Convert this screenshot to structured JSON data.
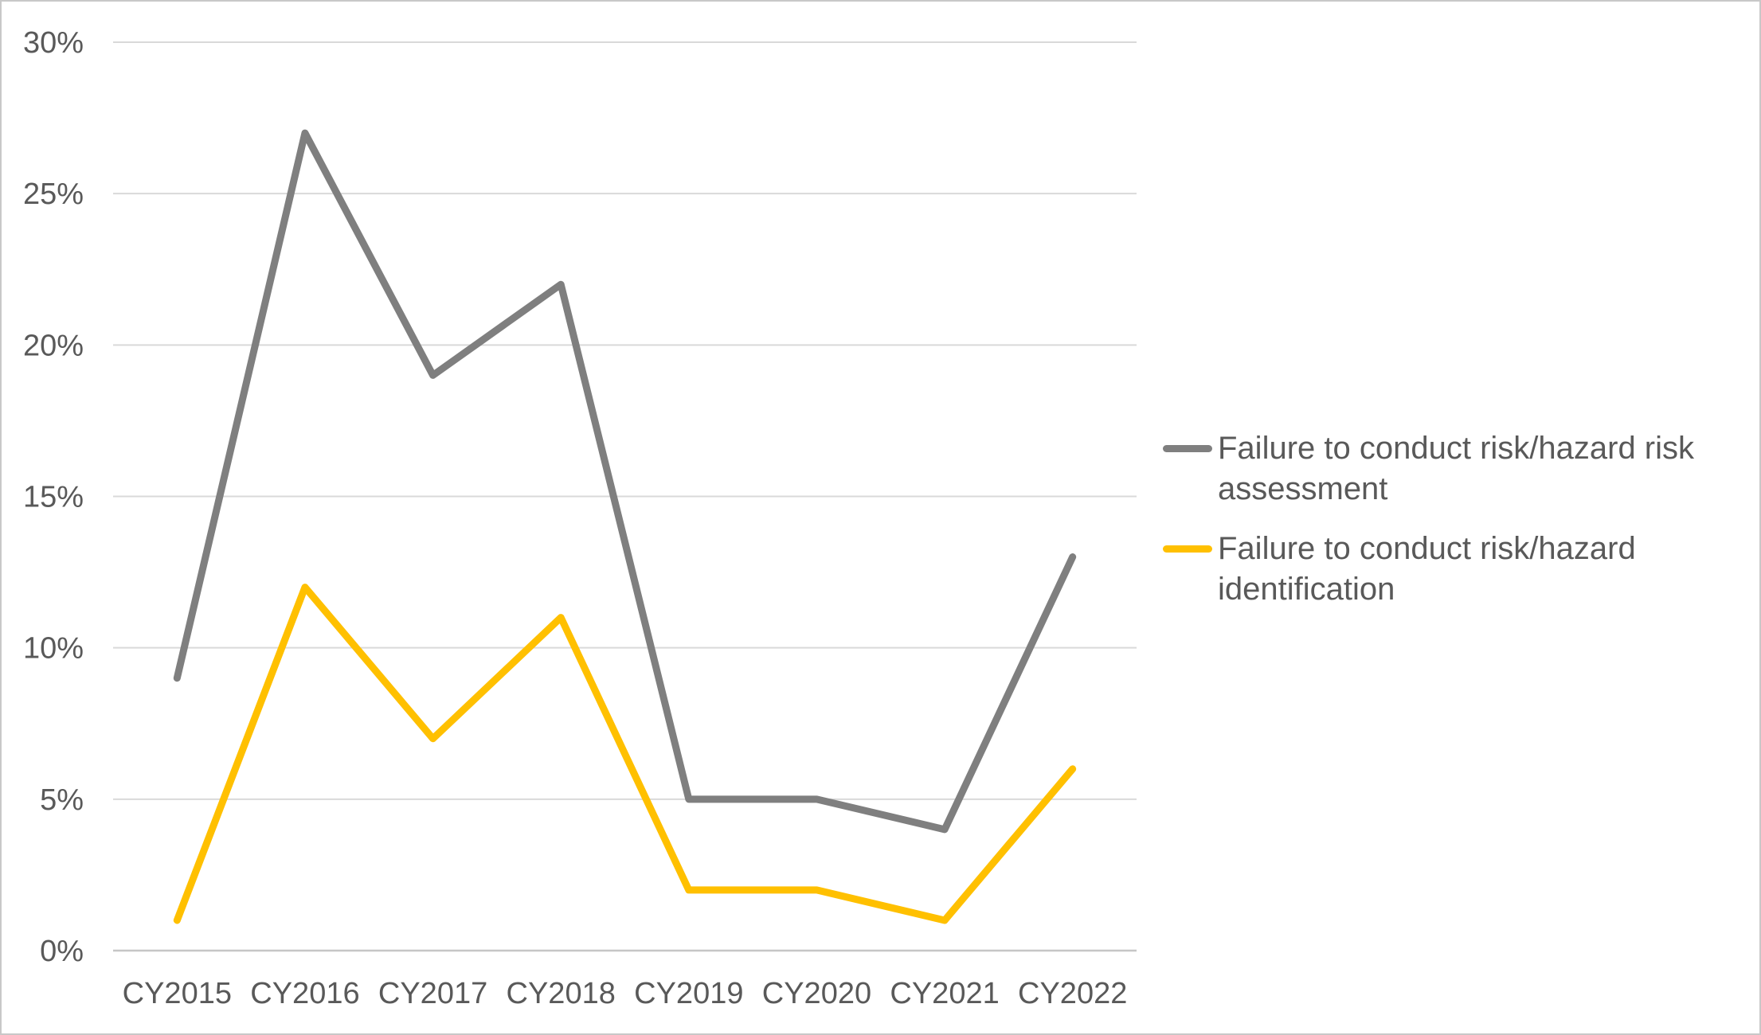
{
  "chart": {
    "background": "#ffffff",
    "border_color": "#c8c8c8",
    "series_stroke_width": 9
  },
  "chart_data": {
    "type": "line",
    "title": "",
    "xlabel": "",
    "ylabel": "",
    "categories": [
      "CY2015",
      "CY2016",
      "CY2017",
      "CY2018",
      "CY2019",
      "CY2020",
      "CY2021",
      "CY2022"
    ],
    "series": [
      {
        "name": "Failure to conduct risk/hazard risk assessment",
        "color": "#7f7f7f",
        "values": [
          9,
          27,
          19,
          22,
          5,
          5,
          4,
          13
        ]
      },
      {
        "name": "Failure to conduct risk/hazard identification",
        "color": "#ffc000",
        "values": [
          1,
          12,
          7,
          11,
          2,
          2,
          1,
          6
        ]
      }
    ],
    "ylim": [
      0,
      30
    ],
    "y_tick_step": 5,
    "y_tick_labels": [
      "30%",
      "25%",
      "20%",
      "15%",
      "10%",
      "5%",
      "0%"
    ],
    "grid": true,
    "grid_color": "#d9d9d9",
    "axis_line_color": "#c6c6c6",
    "tick_label_color": "#595959",
    "legend_position": "right"
  },
  "legend": {
    "entries": [
      {
        "label": "Failure to conduct risk/hazard risk\nassessment",
        "color": "#7f7f7f"
      },
      {
        "label": "Failure to conduct risk/hazard\nidentification",
        "color": "#ffc000"
      }
    ]
  }
}
